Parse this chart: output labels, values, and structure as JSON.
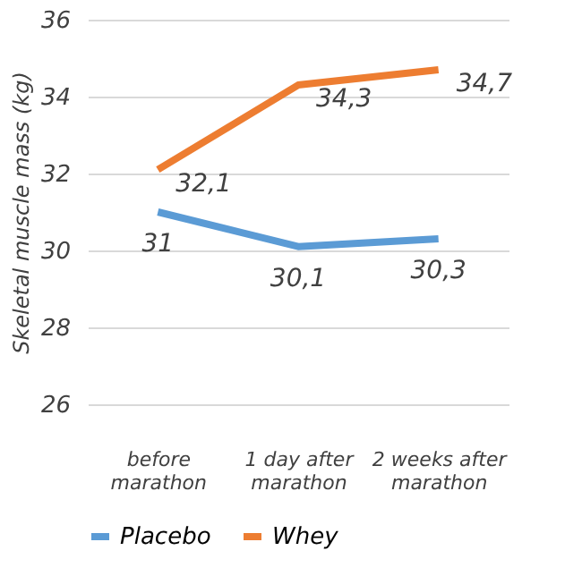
{
  "chart_data": {
    "type": "line",
    "ylabel": "Skeletal muscle mass (kg)",
    "categories": [
      "before marathon",
      "1 day after marathon",
      "2 weeks after marathon"
    ],
    "series": [
      {
        "name": "Placebo",
        "color": "#5b9bd5",
        "values": [
          31,
          30.1,
          30.3
        ],
        "value_labels": [
          "31",
          "30,1",
          "30,3"
        ]
      },
      {
        "name": "Whey",
        "color": "#ed7d31",
        "values": [
          32.1,
          34.3,
          34.7
        ],
        "value_labels": [
          "32,1",
          "34,3",
          "34,7"
        ]
      }
    ],
    "ylim": [
      26,
      36
    ],
    "yticks": [
      26,
      28,
      30,
      32,
      34,
      36
    ],
    "grid": "y",
    "legend": "bottom",
    "marker": "none",
    "line_style": "solid"
  }
}
